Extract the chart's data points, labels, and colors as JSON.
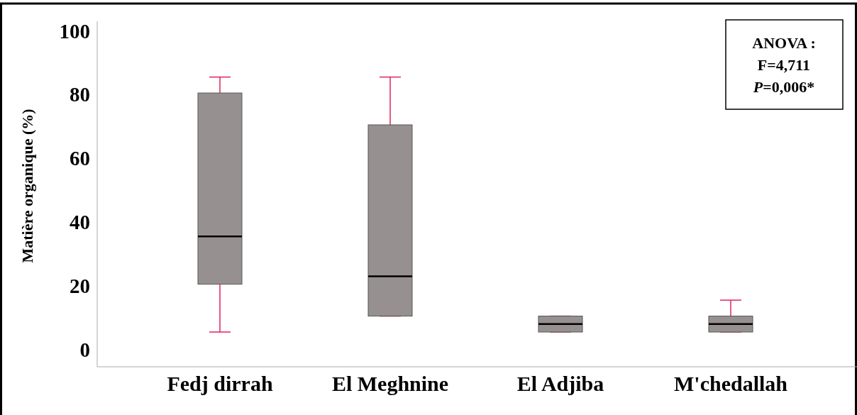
{
  "chart_data": {
    "type": "box",
    "ylabel": "Matière organique (%)",
    "categories": [
      "Fedj dirrah",
      "El Meghnine",
      "El Adjiba",
      "M'chedallah"
    ],
    "color": "#969190",
    "boxes": [
      {
        "low": 5.5,
        "q1": 20.5,
        "median": 35.5,
        "q3": 80.5,
        "high": 85.5
      },
      {
        "low": 10.5,
        "q1": 10.5,
        "median": 23,
        "q3": 70.5,
        "high": 85.5
      },
      {
        "low": 5.5,
        "q1": 5.5,
        "median": 8,
        "q3": 10.5,
        "high": 10.5
      },
      {
        "low": 5.5,
        "q1": 5.5,
        "median": 8,
        "q3": 10.5,
        "high": 15.5
      }
    ],
    "ylim": [
      -5.4,
      103
    ],
    "yticks": [
      0,
      20,
      40,
      60,
      80,
      100
    ],
    "grid": false,
    "annotations": [
      "ANOVA :",
      "F=4,711",
      "P=0,006*"
    ]
  }
}
